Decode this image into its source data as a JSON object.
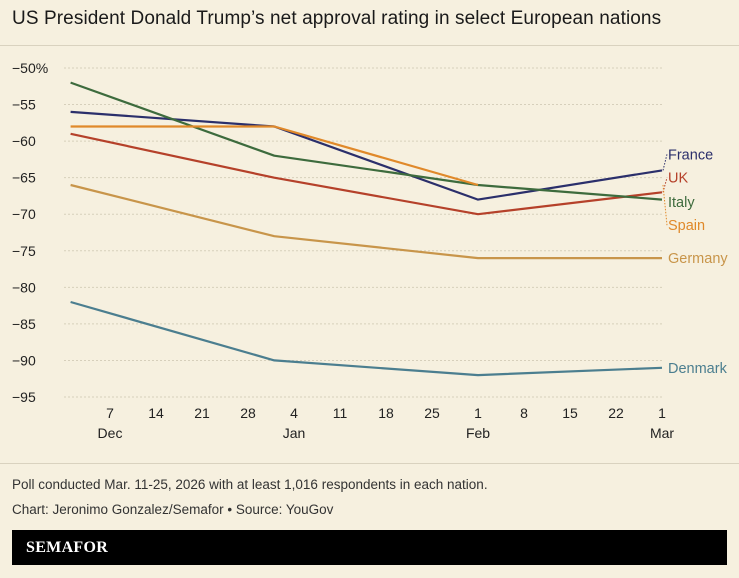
{
  "title": "US President Donald Trump’s net approval rating in select European nations",
  "notes": {
    "poll": "Poll conducted Mar. 11-25, 2026 with at least 1,016 respondents in each nation.",
    "credit": "Chart: Jeronimo Gonzalez/Semafor • Source: YouGov"
  },
  "brand": "SEMAFOR",
  "chart_data": {
    "type": "line",
    "ylim": [
      -95,
      -50
    ],
    "yticks": [
      {
        "value": -50,
        "label": "−50%"
      },
      {
        "value": -55,
        "label": "−55"
      },
      {
        "value": -60,
        "label": "−60"
      },
      {
        "value": -65,
        "label": "−65"
      },
      {
        "value": -70,
        "label": "−70"
      },
      {
        "value": -75,
        "label": "−75"
      },
      {
        "value": -80,
        "label": "−80"
      },
      {
        "value": -85,
        "label": "−85"
      },
      {
        "value": -90,
        "label": "−90"
      },
      {
        "value": -95,
        "label": "−95"
      }
    ],
    "xlim": [
      "2025-11-30",
      "2026-03-01"
    ],
    "xticks": [
      {
        "date": "2025-12-07",
        "label": "7",
        "month": "Dec"
      },
      {
        "date": "2025-12-14",
        "label": "14"
      },
      {
        "date": "2025-12-21",
        "label": "21"
      },
      {
        "date": "2025-12-28",
        "label": "28"
      },
      {
        "date": "2026-01-04",
        "label": "4",
        "month": "Jan"
      },
      {
        "date": "2026-01-11",
        "label": "11"
      },
      {
        "date": "2026-01-18",
        "label": "18"
      },
      {
        "date": "2026-01-25",
        "label": "25"
      },
      {
        "date": "2026-02-01",
        "label": "1",
        "month": "Feb"
      },
      {
        "date": "2026-02-08",
        "label": "8"
      },
      {
        "date": "2026-02-15",
        "label": "15"
      },
      {
        "date": "2026-02-22",
        "label": "22"
      },
      {
        "date": "2026-03-01",
        "label": "1",
        "month": "Mar"
      }
    ],
    "grid": "horizontal",
    "x": [
      "2025-12-01",
      "2026-01-01",
      "2026-02-01",
      "2026-03-01"
    ],
    "series": [
      {
        "name": "France",
        "color": "#2b2f6b",
        "values": [
          -56,
          -58,
          -68,
          -64
        ]
      },
      {
        "name": "UK",
        "color": "#b5412a",
        "values": [
          -59,
          -65,
          -70,
          -67
        ]
      },
      {
        "name": "Italy",
        "color": "#3d6b3d",
        "values": [
          -52,
          -62,
          -66,
          -68
        ]
      },
      {
        "name": "Spain",
        "color": "#e0892a",
        "values": [
          -58,
          -58,
          -66,
          null
        ]
      },
      {
        "name": "Germany",
        "color": "#c8954a",
        "values": [
          -66,
          -73,
          -76,
          -76
        ]
      },
      {
        "name": "Denmark",
        "color": "#4b7e8f",
        "values": [
          -82,
          -90,
          -92,
          -91
        ]
      }
    ]
  }
}
